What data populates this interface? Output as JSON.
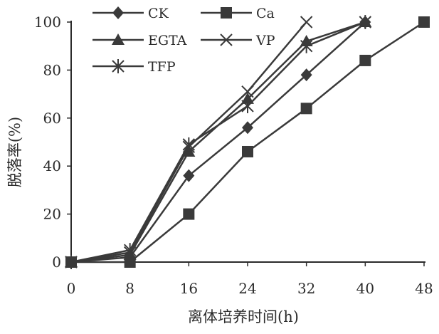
{
  "chart_data": {
    "type": "line",
    "xlabel": "离体培养时间(h)",
    "ylabel": "脱落率(%)",
    "x": [
      0,
      8,
      16,
      24,
      32,
      40,
      48
    ],
    "x_ticks": [
      "0",
      "8",
      "16",
      "24",
      "32",
      "40",
      "48"
    ],
    "y_ticks": [
      "0",
      "20",
      "40",
      "60",
      "80",
      "100"
    ],
    "xlim": [
      0,
      48
    ],
    "ylim": [
      0,
      100
    ],
    "grid": false,
    "legend_position": "top-left",
    "series": [
      {
        "name": "CK",
        "marker": "diamond",
        "x": [
          0,
          8,
          16,
          24,
          32,
          40
        ],
        "values": [
          0,
          2,
          36,
          56,
          78,
          100
        ]
      },
      {
        "name": "Ca",
        "marker": "square",
        "x": [
          0,
          8,
          16,
          24,
          32,
          40,
          48
        ],
        "values": [
          0,
          0,
          20,
          46,
          64,
          84,
          100
        ]
      },
      {
        "name": "EGTA",
        "marker": "triangle",
        "x": [
          0,
          8,
          16,
          24,
          32,
          40
        ],
        "values": [
          0,
          3,
          46,
          68,
          92,
          100
        ]
      },
      {
        "name": "VP",
        "marker": "x",
        "x": [
          0,
          8,
          16,
          24,
          32
        ],
        "values": [
          0,
          4,
          48,
          71,
          100
        ]
      },
      {
        "name": "TFP",
        "marker": "asterisk",
        "x": [
          0,
          8,
          16,
          24,
          32,
          40
        ],
        "values": [
          0,
          5,
          49,
          65,
          90,
          100
        ]
      }
    ],
    "line_color": "#3a3a3a",
    "axis_color": "#2b2b2b"
  }
}
